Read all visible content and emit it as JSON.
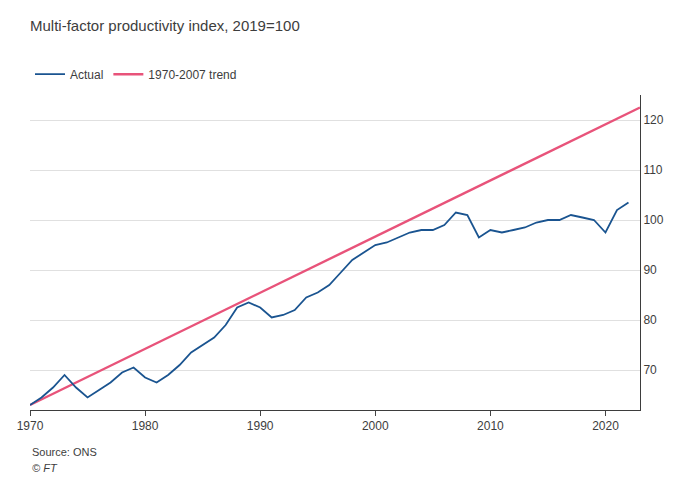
{
  "chart_data": {
    "type": "line",
    "title": "Multi-factor productivity index, 2019=100",
    "series": [
      {
        "name": "Actual",
        "color": "#1a5490",
        "x": [
          1970,
          1971,
          1972,
          1973,
          1974,
          1975,
          1976,
          1977,
          1978,
          1979,
          1980,
          1981,
          1982,
          1983,
          1984,
          1985,
          1986,
          1987,
          1988,
          1989,
          1990,
          1991,
          1992,
          1993,
          1994,
          1995,
          1996,
          1997,
          1998,
          1999,
          2000,
          2001,
          2002,
          2003,
          2004,
          2005,
          2006,
          2007,
          2008,
          2009,
          2010,
          2011,
          2012,
          2013,
          2014,
          2015,
          2016,
          2017,
          2018,
          2019,
          2020,
          2021,
          2022
        ],
        "values": [
          63.0,
          64.5,
          66.5,
          69.0,
          66.5,
          64.5,
          66.0,
          67.5,
          69.5,
          70.5,
          68.5,
          67.5,
          69.0,
          71.0,
          73.5,
          75.0,
          76.5,
          79.0,
          82.5,
          83.5,
          82.5,
          80.5,
          81.0,
          82.0,
          84.5,
          85.5,
          87.0,
          89.5,
          92.0,
          93.5,
          95.0,
          95.5,
          96.5,
          97.5,
          98.0,
          98.0,
          99.0,
          101.5,
          101.0,
          96.5,
          98.0,
          97.5,
          98.0,
          98.5,
          99.5,
          100.0,
          100.0,
          101.0,
          100.5,
          100.0,
          97.5,
          102.0,
          103.5
        ]
      },
      {
        "name": "1970-2007 trend",
        "color": "#e8537a",
        "x": [
          1970,
          2023
        ],
        "values": [
          63.0,
          122.5
        ]
      }
    ],
    "xlim": [
      1970,
      2023
    ],
    "xticks": [
      1970,
      1980,
      1990,
      2000,
      2010,
      2020
    ],
    "ylim": [
      62,
      125
    ],
    "yticks": [
      70,
      80,
      90,
      100,
      110,
      120
    ],
    "grid": true,
    "legend": "upper left",
    "annotations": [
      "Source: ONS",
      "© FT"
    ]
  }
}
